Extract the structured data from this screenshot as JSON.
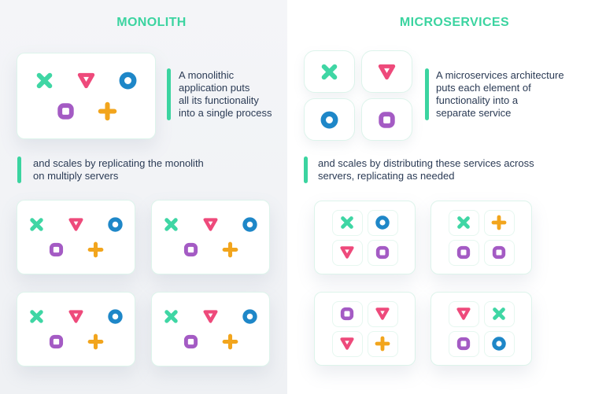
{
  "colors": {
    "accent": "#3bd4a0",
    "icon_teal": "#3fd6a4",
    "icon_pink": "#ee4a7b",
    "icon_blue": "#1e87c8",
    "icon_purple": "#a45bc4",
    "icon_orange": "#f2a51d",
    "text": "#2b3b55",
    "panel_bg": "#f1f2f5",
    "card_border": "#ddf4eb"
  },
  "monolith": {
    "title": "MONOLITH",
    "app_card": {
      "icon_rows": [
        [
          "x",
          "triangle",
          "circle"
        ],
        [
          "square",
          "plus"
        ]
      ]
    },
    "caption_process": "A monolithic\napplication puts\nall its functionality\ninto a single process",
    "caption_scale": "and scales by replicating the monolith\non multiply servers",
    "replicas": [
      [
        [
          "x",
          "triangle",
          "circle"
        ],
        [
          "square",
          "plus"
        ]
      ],
      [
        [
          "x",
          "triangle",
          "circle"
        ],
        [
          "square",
          "plus"
        ]
      ],
      [
        [
          "x",
          "triangle",
          "circle"
        ],
        [
          "square",
          "plus"
        ]
      ],
      [
        [
          "x",
          "triangle",
          "circle"
        ],
        [
          "square",
          "plus"
        ]
      ]
    ]
  },
  "microservices": {
    "title": "MICROSERVICES",
    "services": [
      "x",
      "triangle",
      "circle",
      "square"
    ],
    "caption_process": "A microservices architecture\nputs each element of\nfunctionality into a\nseparate service",
    "caption_scale": "and scales by distributing these services across\nservers, replicating as needed",
    "servers": [
      [
        "x",
        "circle",
        "triangle",
        "square"
      ],
      [
        "x",
        "plus",
        "square",
        "square"
      ],
      [
        "square",
        "triangle",
        "triangle",
        "plus"
      ],
      [
        "triangle",
        "x",
        "square",
        "circle"
      ]
    ]
  }
}
